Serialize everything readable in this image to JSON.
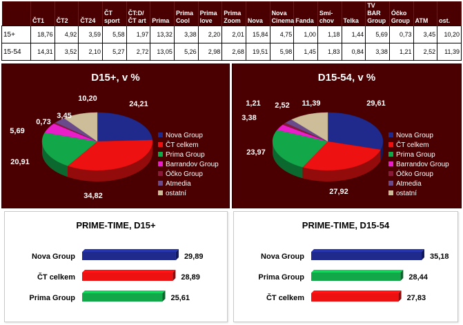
{
  "table": {
    "headers": [
      {
        "line1": "",
        "line2": ""
      },
      {
        "line1": "",
        "line2": "ČT1"
      },
      {
        "line1": "",
        "line2": "ČT2"
      },
      {
        "line1": "",
        "line2": "ČT24"
      },
      {
        "line1": "ČT",
        "line2": "sport"
      },
      {
        "line1": "ČT:D/",
        "line2": "ČT art"
      },
      {
        "line1": "",
        "line2": "Prima"
      },
      {
        "line1": "Prima",
        "line2": "Cool"
      },
      {
        "line1": "Prima",
        "line2": "love"
      },
      {
        "line1": "Prima",
        "line2": "Zoom"
      },
      {
        "line1": "",
        "line2": "Nova"
      },
      {
        "line1": "Nova",
        "line2": "Cinema"
      },
      {
        "line1": "",
        "line2": "Fanda"
      },
      {
        "line1": "Smí-",
        "line2": "chov"
      },
      {
        "line1": "",
        "line2": "Telka"
      },
      {
        "line1": "TV BAR",
        "line2": "Group"
      },
      {
        "line1": "Óčko",
        "line2": "Group"
      },
      {
        "line1": "",
        "line2": "ATM"
      },
      {
        "line1": "",
        "line2": "ost."
      }
    ],
    "rows": [
      {
        "label": "15+",
        "values": [
          "18,76",
          "4,92",
          "3,59",
          "5,58",
          "1,97",
          "13,32",
          "3,38",
          "2,20",
          "2,01",
          "15,84",
          "4,75",
          "1,00",
          "1,18",
          "1,44",
          "5,69",
          "0,73",
          "3,45",
          "10,20"
        ]
      },
      {
        "label": "15-54",
        "values": [
          "14,31",
          "3,52",
          "2,10",
          "5,27",
          "2,72",
          "13,05",
          "5,26",
          "2,98",
          "2,68",
          "19,51",
          "5,98",
          "1,45",
          "1,83",
          "0,84",
          "3,38",
          "1,21",
          "2,52",
          "11,39"
        ]
      }
    ]
  },
  "colors": {
    "panel_bg": "#4a0000",
    "nova": "#1f2a8c",
    "ct": "#ee1111",
    "prima": "#12a84a",
    "barrandov": "#e81ec8",
    "ocko": "#8a1a3a",
    "atmedia": "#6a4a8a",
    "ostatni": "#cdbd98"
  },
  "chart_data": [
    {
      "type": "pie",
      "title": "D15+, v %",
      "legend_position": "right",
      "slices": [
        {
          "name": "Nova Group",
          "value": 24.21,
          "label": "24,21",
          "color": "#1f2a8c"
        },
        {
          "name": "ČT celkem",
          "value": 34.82,
          "label": "34,82",
          "color": "#ee1111"
        },
        {
          "name": "Prima Group",
          "value": 20.91,
          "label": "20,91",
          "color": "#12a84a"
        },
        {
          "name": "Barrandov Group",
          "value": 5.69,
          "label": "5,69",
          "color": "#e81ec8"
        },
        {
          "name": "Óčko Group",
          "value": 0.73,
          "label": "0,73",
          "color": "#8a1a3a"
        },
        {
          "name": "Atmedia",
          "value": 3.45,
          "label": "3,45",
          "color": "#6a4a8a"
        },
        {
          "name": "ostatní",
          "value": 10.2,
          "label": "10,20",
          "color": "#cdbd98"
        }
      ]
    },
    {
      "type": "pie",
      "title": "D15-54, v %",
      "legend_position": "right",
      "slices": [
        {
          "name": "Nova Group",
          "value": 29.61,
          "label": "29,61",
          "color": "#1f2a8c"
        },
        {
          "name": "ČT celkem",
          "value": 27.92,
          "label": "27,92",
          "color": "#ee1111"
        },
        {
          "name": "Prima Group",
          "value": 23.97,
          "label": "23,97",
          "color": "#12a84a"
        },
        {
          "name": "Barrandov Group",
          "value": 3.38,
          "label": "3,38",
          "color": "#e81ec8"
        },
        {
          "name": "Óčko Group",
          "value": 1.21,
          "label": "1,21",
          "color": "#8a1a3a"
        },
        {
          "name": "Atmedia",
          "value": 2.52,
          "label": "2,52",
          "color": "#6a4a8a"
        },
        {
          "name": "ostatní",
          "value": 11.39,
          "label": "11,39",
          "color": "#cdbd98"
        }
      ]
    },
    {
      "type": "bar",
      "orientation": "horizontal",
      "title": "PRIME-TIME, D15+",
      "xlim": [
        0,
        40
      ],
      "categories": [
        "Nova Group",
        "ČT celkem",
        "Prima Group"
      ],
      "values": [
        29.89,
        28.89,
        25.61
      ],
      "labels": [
        "29,89",
        "28,89",
        "25,61"
      ],
      "colors": [
        "#1f2a8c",
        "#ee1111",
        "#12a84a"
      ]
    },
    {
      "type": "bar",
      "orientation": "horizontal",
      "title": "PRIME-TIME, D15-54",
      "xlim": [
        0,
        40
      ],
      "categories": [
        "Nova Group",
        "Prima Group",
        "ČT celkem"
      ],
      "values": [
        35.18,
        28.44,
        27.83
      ],
      "labels": [
        "35,18",
        "28,44",
        "27,83"
      ],
      "colors": [
        "#1f2a8c",
        "#12a84a",
        "#ee1111"
      ]
    }
  ]
}
